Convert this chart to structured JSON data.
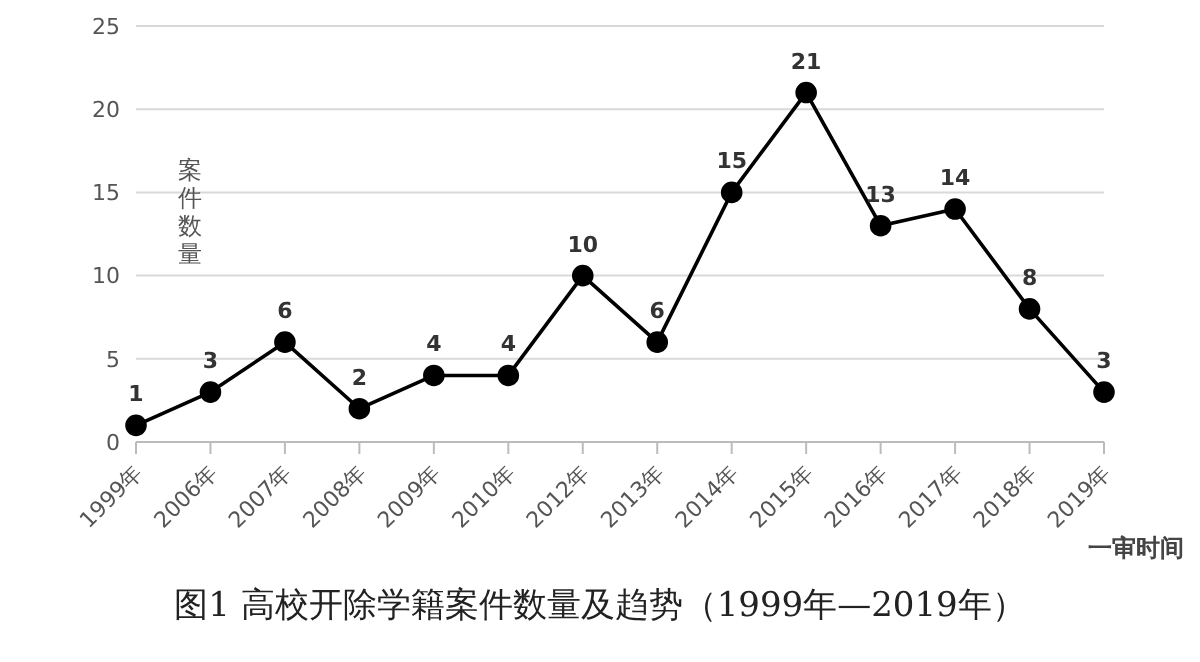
{
  "chart_data": {
    "type": "line",
    "title": "图1  高校开除学籍案件数量及趋势（1999年—2019年）",
    "xlabel": "一审时间",
    "ylabel": "案件数量",
    "categories": [
      "1999年",
      "2006年",
      "2007年",
      "2008年",
      "2009年",
      "2010年",
      "2012年",
      "2013年",
      "2014年",
      "2015年",
      "2016年",
      "2017年",
      "2018年",
      "2019年"
    ],
    "series": [
      {
        "color": "#000000",
        "values": [
          1,
          3,
          6,
          2,
          4,
          4,
          10,
          6,
          15,
          21,
          13,
          14,
          8,
          3
        ]
      }
    ],
    "ylim": [
      0,
      25
    ],
    "yticks": [
      0,
      5,
      10,
      15,
      20,
      25
    ],
    "grid": "y",
    "marker": "circle",
    "line_style": "solid",
    "data_labels": true
  }
}
